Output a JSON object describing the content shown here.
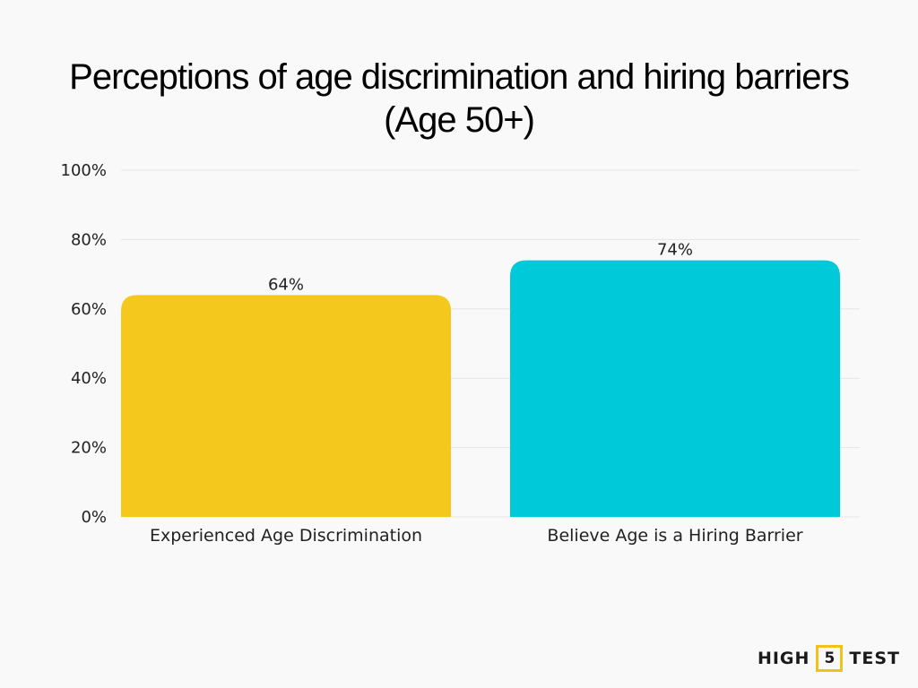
{
  "title": "Perceptions of age discrimination and hiring barriers (Age 50+)",
  "chart_data": {
    "type": "bar",
    "title": "Perceptions of age discrimination and hiring barriers (Age 50+)",
    "categories": [
      "Experienced Age Discrimination",
      "Believe Age is a Hiring Barrier"
    ],
    "values": [
      64,
      74
    ],
    "data_labels": [
      "64%",
      "74%"
    ],
    "bar_colors": [
      "#f4c81d",
      "#00c9d9"
    ],
    "ylim": [
      0,
      100
    ],
    "yticks": [
      0,
      20,
      40,
      60,
      80,
      100
    ],
    "ytick_labels": [
      "0%",
      "20%",
      "40%",
      "60%",
      "80%",
      "100%"
    ],
    "grid": true,
    "xlabel": "",
    "ylabel": ""
  },
  "brand": {
    "left": "HIGH",
    "number": "5",
    "right": "TEST",
    "accent_color": "#f2c218"
  }
}
